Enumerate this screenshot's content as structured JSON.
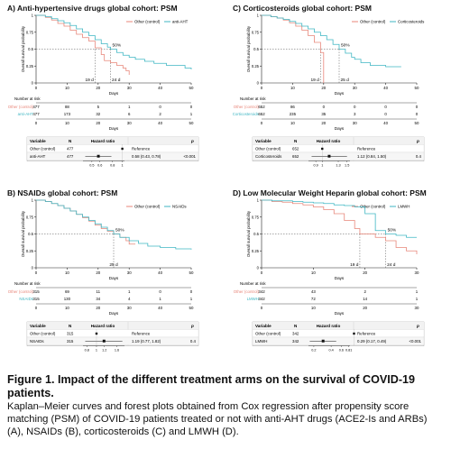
{
  "colors": {
    "control": "#e8867a",
    "treatment": "#3fb6c3",
    "ref": "#555555"
  },
  "common": {
    "ylabel": "Overall survival probability",
    "xlabel": "Days",
    "number_at_risk": "Number at risk",
    "variable": "Variable",
    "n": "N",
    "hazard_ratio": "Hazard ratio",
    "p": "p",
    "reference": "Reference",
    "pct50": "50%"
  },
  "panels": [
    {
      "title": "A) Anti-hypertensive drugs global cohort: PSM",
      "legend": [
        "Other (control)",
        "anti-AHT"
      ],
      "median_labels": [
        "19 d",
        "24 d"
      ],
      "risk": {
        "times": [
          "0",
          "10",
          "20",
          "30",
          "40",
          "50"
        ],
        "rows": [
          {
            "label": "Other (control)",
            "values": [
              "477",
              "88",
              "5",
              "1",
              "0",
              "0"
            ]
          },
          {
            "label": "anti-AHT",
            "values": [
              "477",
              "173",
              "32",
              "6",
              "2",
              "1"
            ]
          }
        ]
      },
      "forest": {
        "rows": [
          {
            "var": "Other (control)",
            "n": "477",
            "text": "Reference",
            "p": ""
          },
          {
            "var": "anti-AHT",
            "n": "477",
            "text": "0.58 (0.43, 0.78)",
            "p": "<0.001"
          }
        ],
        "ticks": [
          "0.5",
          "0.6",
          "0.8",
          "1"
        ]
      },
      "chart_data": {
        "type": "line",
        "xlabel": "Days",
        "ylabel": "Overall survival probability",
        "xlim": [
          0,
          50
        ],
        "ylim": [
          0,
          1
        ],
        "series": [
          {
            "name": "Other (control)",
            "x": [
              0,
              3,
              5,
              7,
              9,
              11,
              13,
              15,
              17,
              19,
              21,
              22,
              24,
              26,
              28,
              29,
              30
            ],
            "y": [
              1,
              0.97,
              0.93,
              0.88,
              0.84,
              0.78,
              0.72,
              0.67,
              0.62,
              0.52,
              0.42,
              0.33,
              0.3,
              0.26,
              0.22,
              0.18,
              0.12
            ]
          },
          {
            "name": "anti-AHT",
            "x": [
              0,
              3,
              5,
              7,
              9,
              11,
              13,
              15,
              17,
              19,
              21,
              23,
              24,
              26,
              28,
              30,
              32,
              35,
              38,
              42,
              48,
              52
            ],
            "y": [
              1,
              0.98,
              0.95,
              0.92,
              0.89,
              0.85,
              0.8,
              0.75,
              0.7,
              0.64,
              0.58,
              0.53,
              0.5,
              0.45,
              0.41,
              0.38,
              0.35,
              0.32,
              0.29,
              0.26,
              0.22,
              0.2
            ]
          }
        ],
        "medians_days": [
          19,
          24
        ]
      }
    },
    {
      "title": "C) Corticosteroids global cohort: PSM",
      "legend": [
        "Other (control)",
        "Corticosteroids"
      ],
      "median_labels": [
        "19 d",
        "25 d"
      ],
      "risk": {
        "times": [
          "0",
          "10",
          "20",
          "30",
          "40",
          "50"
        ],
        "rows": [
          {
            "label": "Other (control)",
            "values": [
              "652",
              "86",
              "0",
              "0",
              "0",
              "0"
            ]
          },
          {
            "label": "Corticosteroids",
            "values": [
              "652",
              "235",
              "35",
              "3",
              "0",
              "0"
            ]
          }
        ]
      },
      "forest": {
        "rows": [
          {
            "var": "Other (control)",
            "n": "652",
            "text": "Reference",
            "p": ""
          },
          {
            "var": "Corticosteroids",
            "n": "652",
            "text": "1.12 (0.84, 1.50)",
            "p": "0.4"
          }
        ],
        "ticks": [
          "0.9",
          "1",
          "1.3",
          "1.5"
        ]
      },
      "chart_data": {
        "type": "line",
        "xlabel": "Days",
        "ylabel": "Overall survival probability",
        "xlim": [
          0,
          50
        ],
        "ylim": [
          0,
          1
        ],
        "series": [
          {
            "name": "Other (control)",
            "x": [
              0,
              3,
              5,
              7,
              9,
              11,
              13,
              15,
              17,
              19,
              20
            ],
            "y": [
              1,
              0.98,
              0.96,
              0.93,
              0.89,
              0.84,
              0.78,
              0.7,
              0.6,
              0.45,
              0
            ]
          },
          {
            "name": "Corticosteroids",
            "x": [
              0,
              3,
              5,
              7,
              9,
              11,
              13,
              15,
              17,
              19,
              21,
              23,
              25,
              27,
              29,
              30,
              32,
              35,
              40,
              45
            ],
            "y": [
              1,
              0.98,
              0.96,
              0.94,
              0.91,
              0.88,
              0.84,
              0.8,
              0.75,
              0.7,
              0.64,
              0.57,
              0.5,
              0.44,
              0.38,
              0.35,
              0.3,
              0.26,
              0.24,
              0.24
            ]
          }
        ],
        "medians_days": [
          19,
          25
        ]
      }
    },
    {
      "title": "B) NSAIDs global cohort: PSM",
      "legend": [
        "Other (control)",
        "NSAIDs"
      ],
      "median_labels": [
        "25 d"
      ],
      "risk": {
        "times": [
          "0",
          "10",
          "20",
          "30",
          "40",
          "50"
        ],
        "rows": [
          {
            "label": "Other (control)",
            "values": [
              "315",
              "69",
              "11",
              "1",
              "0",
              "0"
            ]
          },
          {
            "label": "NSAIDs",
            "values": [
              "315",
              "130",
              "34",
              "4",
              "1",
              "1"
            ]
          }
        ]
      },
      "forest": {
        "rows": [
          {
            "var": "Other (control)",
            "n": "315",
            "text": "Reference",
            "p": ""
          },
          {
            "var": "NSAIDs",
            "n": "315",
            "text": "1.19 (0.77, 1.82)",
            "p": "0.4"
          }
        ],
        "ticks": [
          "0.8",
          "1",
          "1.2",
          "1.6"
        ]
      },
      "chart_data": {
        "type": "line",
        "xlabel": "Days",
        "ylabel": "Overall survival probability",
        "xlim": [
          0,
          50
        ],
        "ylim": [
          0,
          1
        ],
        "series": [
          {
            "name": "Other (control)",
            "x": [
              0,
              3,
              5,
              7,
              9,
              11,
              13,
              15,
              17,
              19,
              21,
              23,
              25,
              27,
              29,
              30,
              32
            ],
            "y": [
              1,
              0.98,
              0.95,
              0.92,
              0.88,
              0.84,
              0.79,
              0.74,
              0.69,
              0.63,
              0.58,
              0.54,
              0.5,
              0.45,
              0.4,
              0.35,
              0.35
            ]
          },
          {
            "name": "NSAIDs",
            "x": [
              0,
              3,
              5,
              7,
              9,
              11,
              13,
              15,
              17,
              19,
              21,
              23,
              25,
              27,
              30,
              33,
              36,
              40,
              45,
              50
            ],
            "y": [
              1,
              0.98,
              0.95,
              0.92,
              0.88,
              0.84,
              0.79,
              0.75,
              0.7,
              0.65,
              0.6,
              0.55,
              0.5,
              0.45,
              0.4,
              0.36,
              0.32,
              0.3,
              0.28,
              0.27
            ]
          }
        ],
        "medians_days": [
          25
        ]
      }
    },
    {
      "title": "D) Low Molecular Weight Heparin global cohort: PSM",
      "legend": [
        "Other (control)",
        "LMWH"
      ],
      "median_labels": [
        "19 d",
        "24 d"
      ],
      "risk": {
        "times": [
          "0",
          "10",
          "20",
          "30"
        ],
        "rows": [
          {
            "label": "Other (control)",
            "values": [
              "342",
              "43",
              "2",
              "1"
            ]
          },
          {
            "label": "LMWH",
            "values": [
              "342",
              "72",
              "14",
              "1"
            ]
          }
        ]
      },
      "forest": {
        "rows": [
          {
            "var": "Other (control)",
            "n": "342",
            "text": "Reference",
            "p": ""
          },
          {
            "var": "LMWH",
            "n": "342",
            "text": "0.29 (0.17, 0.49)",
            "p": "<0.001"
          }
        ],
        "ticks": [
          "0.2",
          "0.4",
          "0.6",
          "0.81"
        ]
      },
      "chart_data": {
        "type": "line",
        "xlabel": "Days",
        "ylabel": "Overall survival probability",
        "xlim": [
          0,
          30
        ],
        "ylim": [
          0,
          1
        ],
        "series": [
          {
            "name": "Other (control)",
            "x": [
              0,
              2,
              4,
              6,
              8,
              10,
              12,
              14,
              16,
              18,
              19,
              20,
              22,
              24,
              26,
              28,
              30
            ],
            "y": [
              1,
              0.98,
              0.97,
              0.95,
              0.93,
              0.9,
              0.86,
              0.8,
              0.7,
              0.58,
              0.5,
              0.5,
              0.45,
              0.4,
              0.3,
              0.25,
              0.2
            ]
          },
          {
            "name": "LMWH",
            "x": [
              0,
              2,
              4,
              6,
              8,
              10,
              12,
              14,
              16,
              18,
              20,
              22,
              24,
              26,
              28,
              30
            ],
            "y": [
              1,
              0.99,
              0.99,
              0.98,
              0.97,
              0.96,
              0.95,
              0.93,
              0.92,
              0.9,
              0.8,
              0.55,
              0.5,
              0.48,
              0.45,
              0.45
            ]
          }
        ],
        "medians_days": [
          19,
          24
        ]
      }
    }
  ],
  "caption": {
    "title": "Figure 1. Impact of the different treatment arms on the survival of COVID-19 patients.",
    "body": "Kaplan–Meier curves and forest plots obtained from Cox regression after propensity score matching (PSM) of COVID-19 patients treated or not with anti-AHT drugs (ACE2-Is and ARBs) (A), NSAIDs (B), corticosteroids (C) and LMWH (D)."
  }
}
